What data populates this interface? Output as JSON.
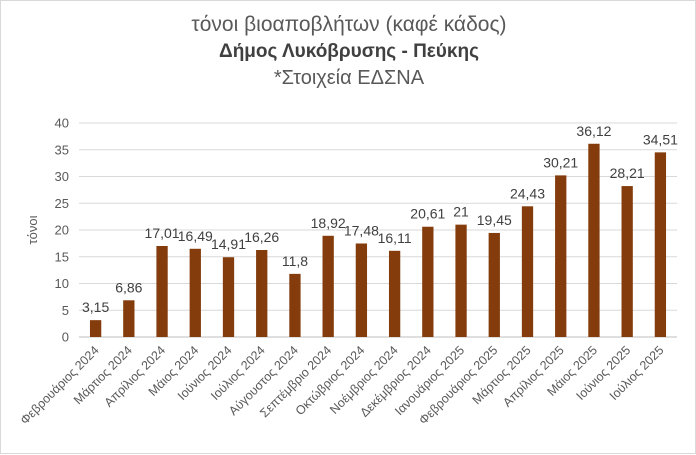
{
  "chart_data": {
    "type": "bar",
    "title": "τόνοι βιοαποβλήτων (καφέ κάδος)",
    "subtitle": "Δήμος Λυκόβρυσης - Πεύκης",
    "note": "*Στοιχεία ΕΔΣΝΑ",
    "ylabel": "τόνοι",
    "xlabel": "",
    "ylim": [
      0,
      40
    ],
    "yticks": [
      0,
      5,
      10,
      15,
      20,
      25,
      30,
      35,
      40
    ],
    "grid": true,
    "bar_color": "#843c0c",
    "categories": [
      "Φεβρουάριος 2024",
      "Μάρτιος 2024",
      "Απρίλιος 2024",
      "Μάιος 2024",
      "Ιούνιος 2024",
      "Ιούλιος 2024",
      "Αύγουστος 2024",
      "Σεπτέμβριο 2024",
      "Οκτώβριος 2024",
      "Νοέμβριος 2024",
      "Δεκέμβριος 2024",
      "Ιανουάριος 2025",
      "Φεβρουάριος 2025",
      "Μάρτιος 2025",
      "Απρίλιος 2025",
      "Μάιος 2025",
      "Ιούνιος 2025",
      "Ιούλιος 2025"
    ],
    "values": [
      3.15,
      6.86,
      17.01,
      16.49,
      14.91,
      16.26,
      11.8,
      18.92,
      17.48,
      16.11,
      20.61,
      21,
      19.45,
      24.43,
      30.21,
      36.12,
      28.21,
      34.51
    ],
    "data_labels": [
      "3,15",
      "6,86",
      "17,01",
      "16,49",
      "14,91",
      "16,26",
      "11,8",
      "18,92",
      "17,48",
      "16,11",
      "20,61",
      "21",
      "19,45",
      "24,43",
      "30,21",
      "36,12",
      "28,21",
      "34,51"
    ]
  }
}
